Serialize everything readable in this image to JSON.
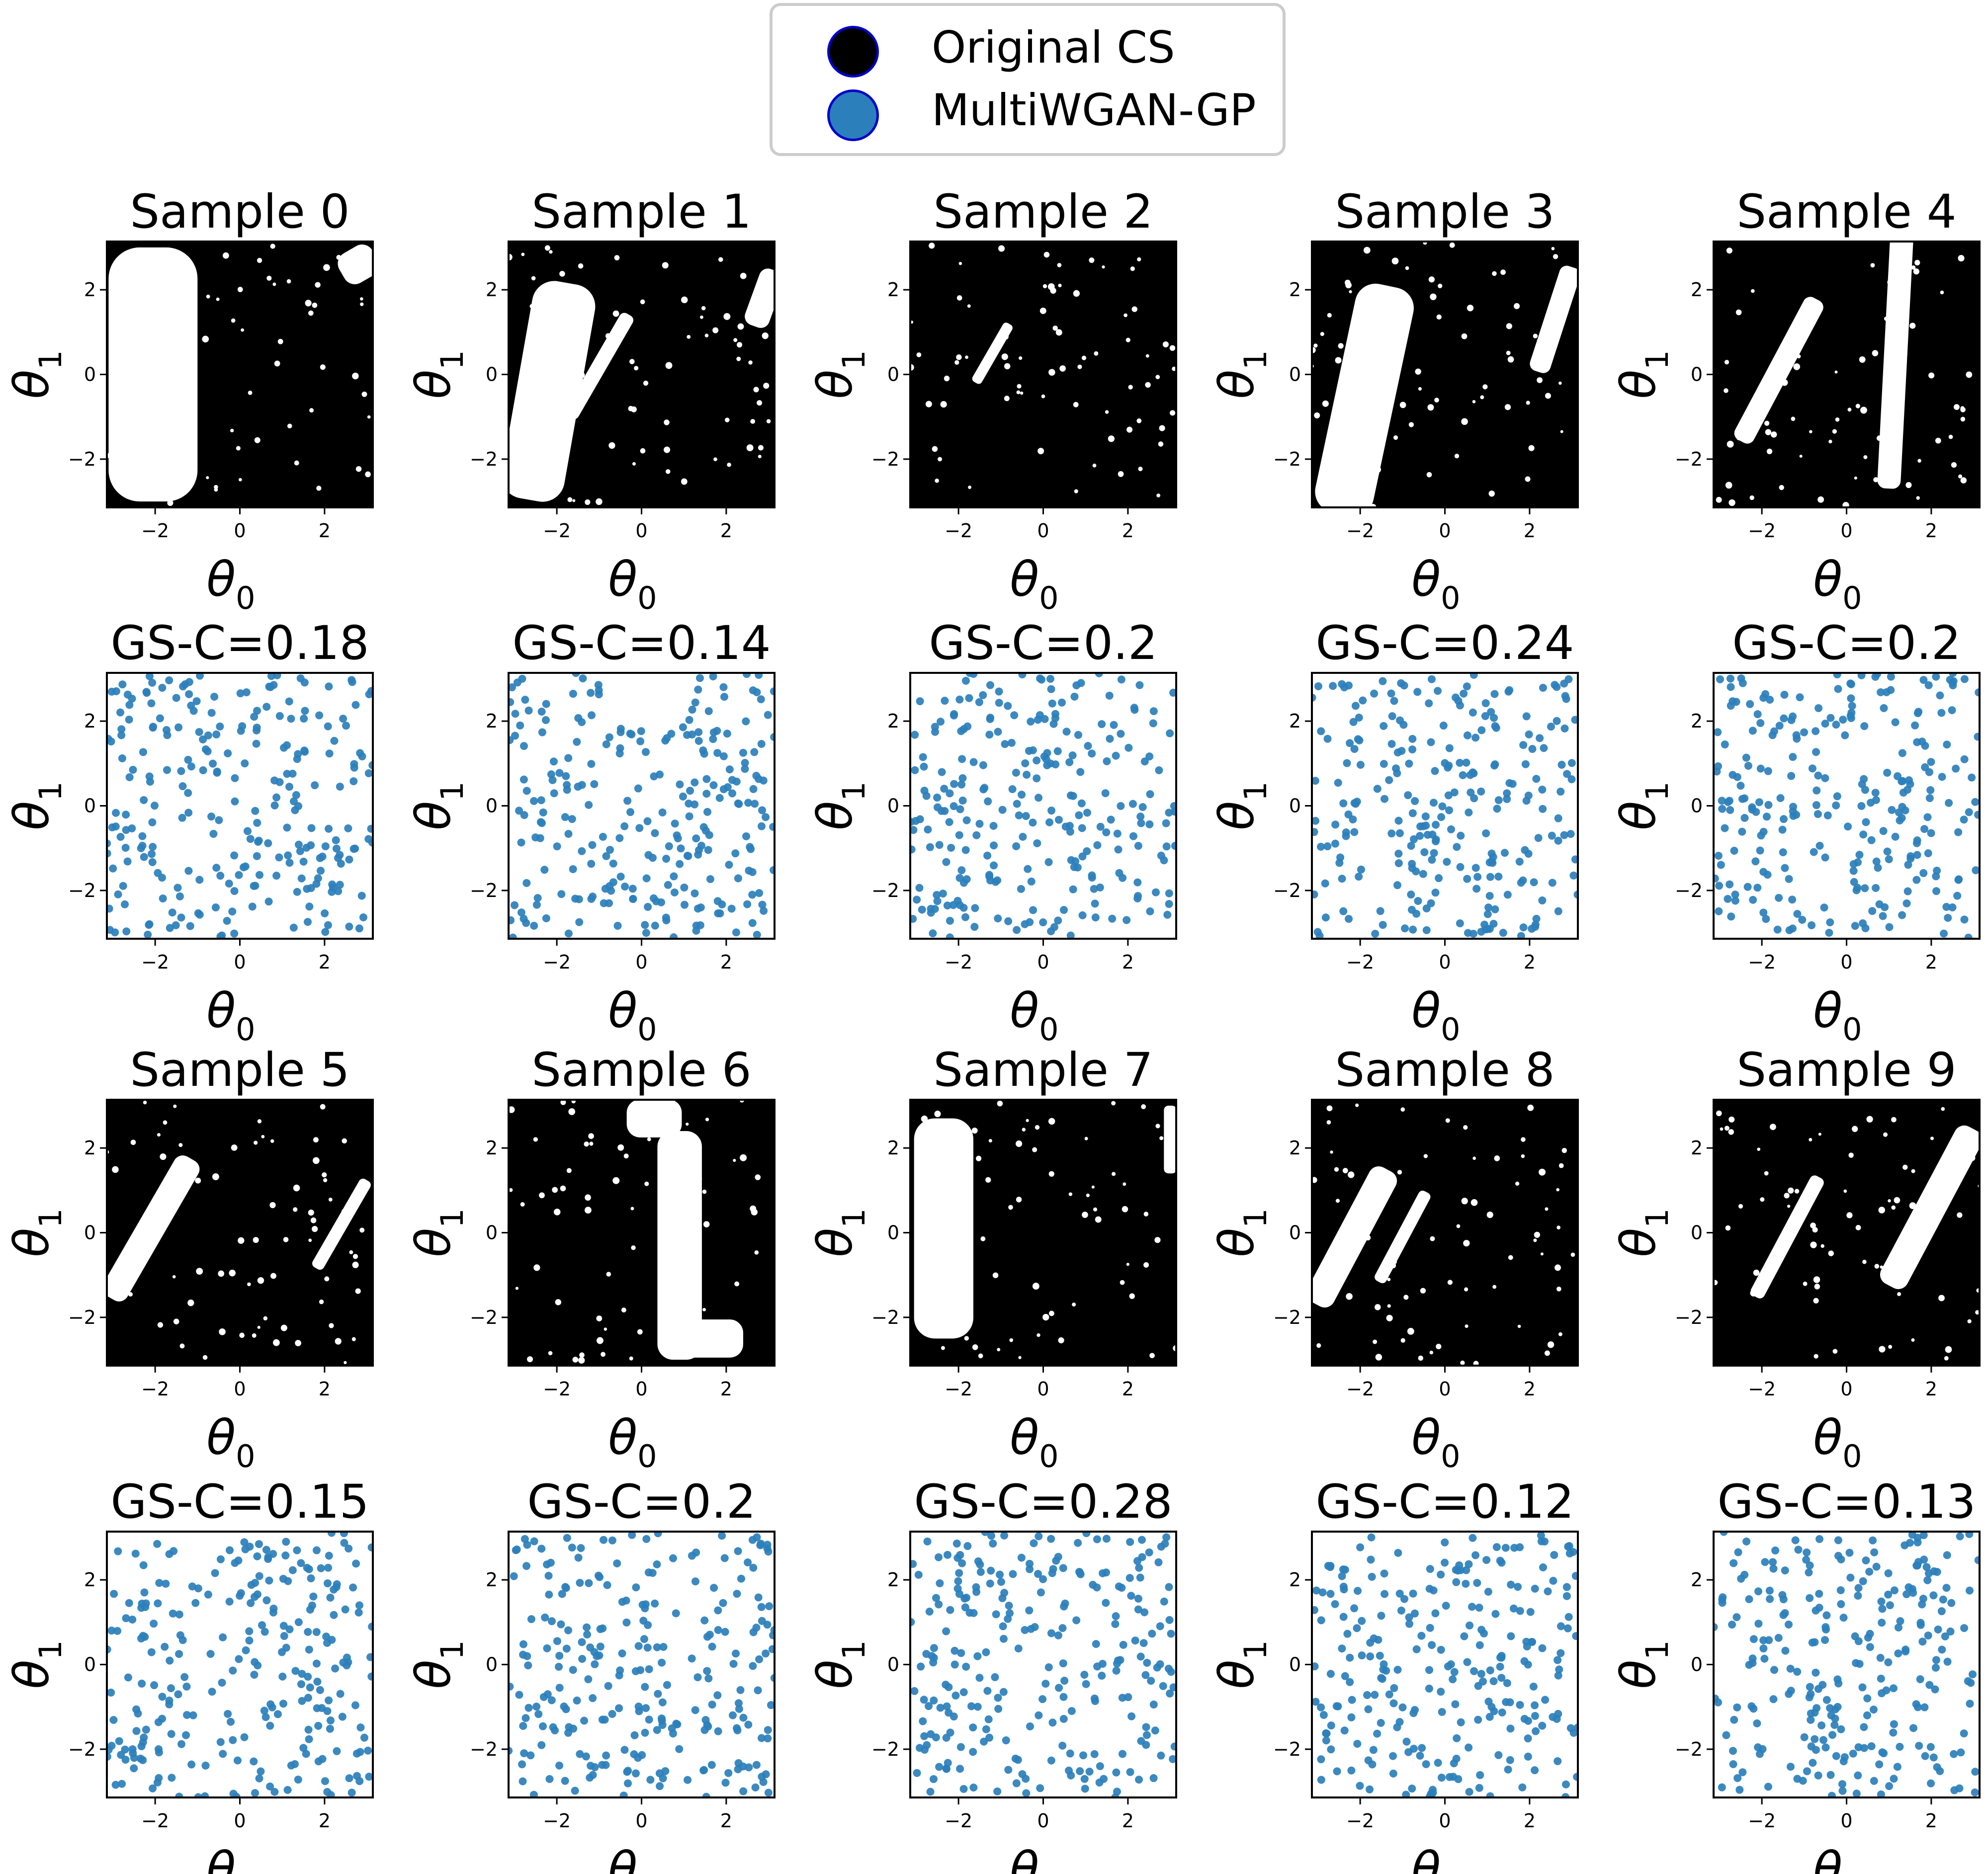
{
  "legend": {
    "entries": [
      {
        "label": "Original CS",
        "color": "#000000"
      },
      {
        "label": "MultiWGAN-GP",
        "color": "#2b7fbb"
      }
    ]
  },
  "axes": {
    "xlabel_symbol": "θ",
    "xlabel_sub": "0",
    "ylabel_symbol": "θ",
    "ylabel_sub": "1",
    "xlim": [
      -3.14,
      3.14
    ],
    "ylim": [
      -3.14,
      3.14
    ],
    "xticks": [
      -2,
      0,
      2
    ],
    "yticks": [
      -2,
      0,
      2
    ],
    "tick_labels": [
      "−2",
      "0",
      "2"
    ]
  },
  "colors": {
    "original": "#000000",
    "generated": "#2b7fbb"
  },
  "chart_data": {
    "type": "scatter",
    "original_panels": [
      "Sample 0",
      "Sample 1",
      "Sample 2",
      "Sample 3",
      "Sample 4",
      "Sample 5",
      "Sample 6",
      "Sample 7",
      "Sample 8",
      "Sample 9"
    ],
    "generated_panels": [
      "GS-C=0.18",
      "GS-C=0.14",
      "GS-C=0.2",
      "GS-C=0.24",
      "GS-C=0.2",
      "GS-C=0.15",
      "GS-C=0.2",
      "GS-C=0.28",
      "GS-C=0.12",
      "GS-C=0.13"
    ],
    "original_free_regions": [
      {
        "holes": [
          {
            "x": -2.05,
            "y": 0.0,
            "w": 2.1,
            "h": 6.0,
            "angle": 0
          },
          {
            "x": 2.8,
            "y": 2.6,
            "w": 0.9,
            "h": 0.8,
            "angle": -30
          }
        ]
      },
      {
        "holes": [
          {
            "x": -2.2,
            "y": -0.4,
            "w": 1.5,
            "h": 5.2,
            "angle": 10
          },
          {
            "x": -1.0,
            "y": 0.2,
            "w": 0.35,
            "h": 2.8,
            "angle": 30
          },
          {
            "x": 2.9,
            "y": 1.8,
            "w": 0.6,
            "h": 1.4,
            "angle": 20
          }
        ]
      },
      {
        "holes": [
          {
            "x": -1.2,
            "y": 0.5,
            "w": 0.25,
            "h": 1.6,
            "angle": 30
          }
        ]
      },
      {
        "holes": [
          {
            "x": -1.9,
            "y": -0.6,
            "w": 1.4,
            "h": 5.5,
            "angle": 12
          },
          {
            "x": 2.6,
            "y": 1.3,
            "w": 0.5,
            "h": 2.6,
            "angle": 18
          }
        ]
      },
      {
        "holes": [
          {
            "x": -1.6,
            "y": 0.1,
            "w": 0.5,
            "h": 3.8,
            "angle": 28
          },
          {
            "x": 1.15,
            "y": 0.3,
            "w": 0.55,
            "h": 6.0,
            "angle": 3
          }
        ]
      },
      {
        "holes": [
          {
            "x": -2.1,
            "y": 0.1,
            "w": 0.65,
            "h": 3.8,
            "angle": 30
          },
          {
            "x": 2.4,
            "y": 0.2,
            "w": 0.3,
            "h": 2.4,
            "angle": 30
          }
        ]
      },
      {
        "holes": [
          {
            "x": 0.9,
            "y": -0.3,
            "w": 1.05,
            "h": 5.4,
            "angle": 0
          },
          {
            "x": 1.6,
            "y": -2.5,
            "w": 1.6,
            "h": 0.9,
            "angle": 0
          },
          {
            "x": 0.3,
            "y": 2.7,
            "w": 1.3,
            "h": 0.9,
            "angle": 0
          }
        ]
      },
      {
        "holes": [
          {
            "x": -2.35,
            "y": 0.1,
            "w": 1.4,
            "h": 5.2,
            "angle": 0
          },
          {
            "x": 3.0,
            "y": 2.2,
            "w": 0.3,
            "h": 1.6,
            "angle": 0
          }
        ]
      },
      {
        "holes": [
          {
            "x": -2.2,
            "y": -0.1,
            "w": 0.7,
            "h": 3.6,
            "angle": 28
          },
          {
            "x": -1.0,
            "y": -0.1,
            "w": 0.3,
            "h": 2.4,
            "angle": 28
          }
        ]
      },
      {
        "holes": [
          {
            "x": -1.4,
            "y": -0.1,
            "w": 0.35,
            "h": 3.2,
            "angle": 28
          },
          {
            "x": 2.0,
            "y": 0.6,
            "w": 0.7,
            "h": 4.2,
            "angle": 28
          }
        ]
      }
    ],
    "generated_points_per_panel": 250
  }
}
